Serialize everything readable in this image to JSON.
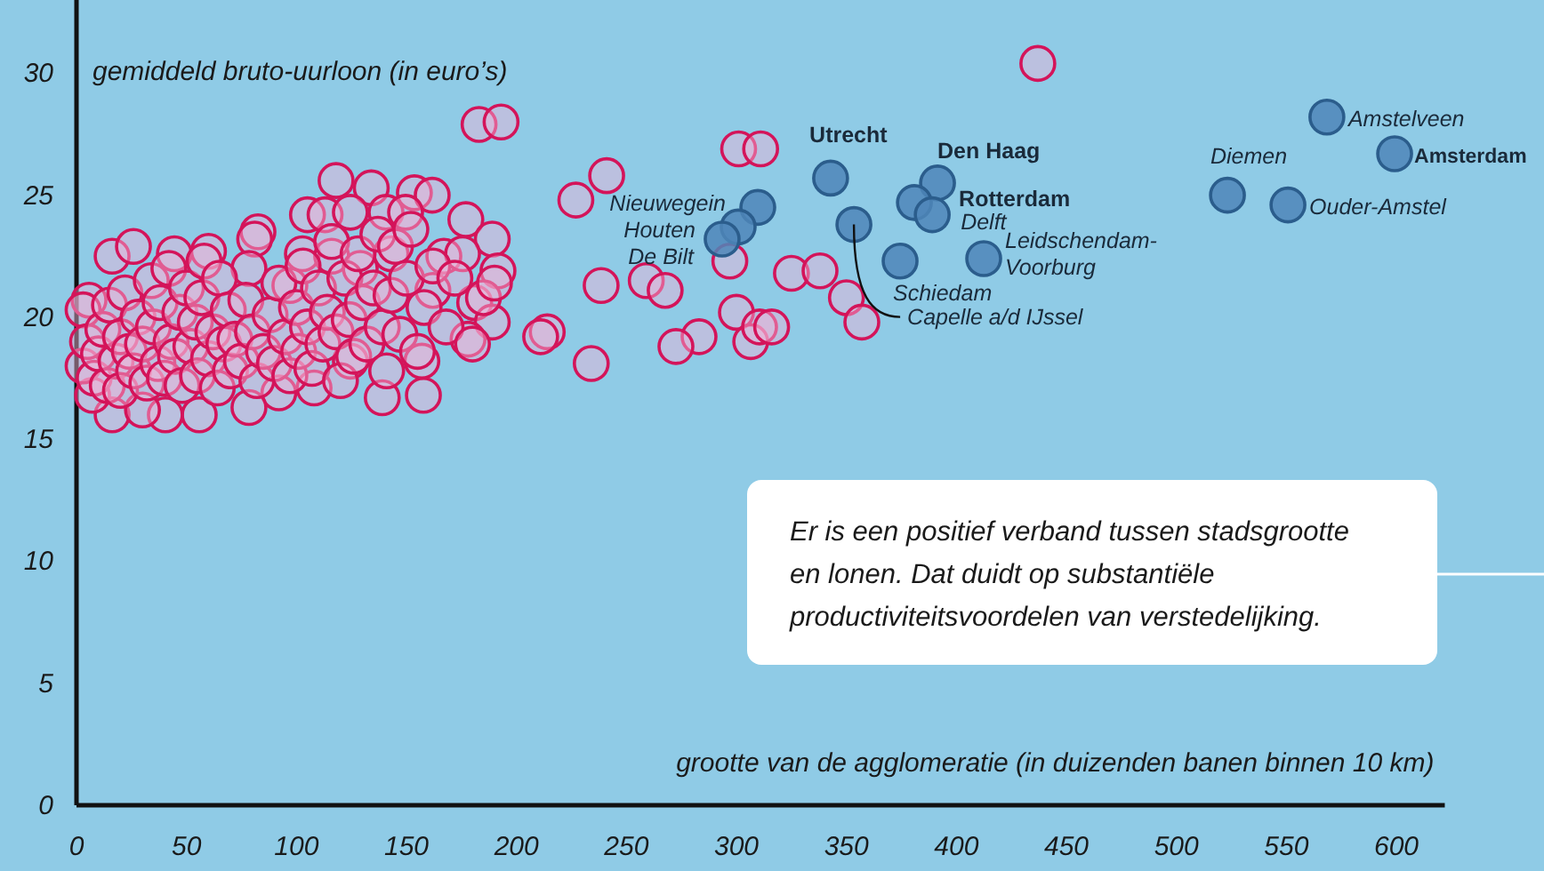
{
  "chart_data": {
    "type": "scatter",
    "xlabel": "grootte van de agglomeratie (in duizenden banen binnen 10 km)",
    "ylabel": "gemiddeld bruto-uurloon (in euro’s)",
    "xlim": [
      0,
      622
    ],
    "ylim": [
      0,
      33
    ],
    "xticks": [
      0,
      50,
      100,
      150,
      200,
      250,
      300,
      350,
      400,
      450,
      500,
      550,
      600
    ],
    "yticks": [
      0,
      5,
      10,
      15,
      20,
      25,
      30
    ],
    "grid": false,
    "marker": "circle",
    "series": [
      {
        "color": "#d4145a",
        "x": [
          437,
          183,
          193,
          301,
          311,
          241,
          227,
          238.5,
          259,
          267.6,
          297,
          325,
          338,
          350,
          357,
          300,
          306.5,
          310.5,
          316,
          283,
          272.5,
          234,
          214,
          211,
          118,
          134,
          153.6,
          161.7,
          105,
          113,
          124.5,
          140.7,
          149.6,
          177,
          189,
          82.5,
          16.2,
          25.9,
          44.5,
          60,
          81,
          102.7,
          116,
          143,
          167,
          175.5,
          191.6,
          5.7,
          78.4,
          97,
          129,
          162,
          181,
          189,
          178,
          157,
          157.7,
          139,
          124.5,
          108,
          92,
          78.4,
          55.8,
          40.4,
          16.2,
          30,
          7.3,
          3,
          3,
          5,
          8,
          10,
          12,
          14,
          15,
          18,
          20,
          20,
          22,
          24,
          26,
          28,
          30,
          32,
          34,
          35,
          37,
          38,
          40,
          42,
          43,
          45,
          47,
          48,
          50,
          52,
          54,
          55,
          57,
          58,
          60,
          62,
          64,
          65,
          67,
          69,
          70,
          72,
          75,
          77,
          80,
          82,
          85,
          88,
          90,
          92,
          95,
          97,
          100,
          101,
          103,
          105,
          107,
          110,
          112,
          114,
          116,
          118,
          120,
          122,
          124,
          126,
          128,
          130,
          132,
          135,
          137,
          139,
          141,
          143,
          145,
          147,
          150,
          152,
          155,
          158,
          162,
          168,
          172,
          185,
          190,
          180
        ],
        "values": [
          30.4,
          27.9,
          28.0,
          26.9,
          26.9,
          25.8,
          24.8,
          21.3,
          21.5,
          21.1,
          22.3,
          21.8,
          21.9,
          20.8,
          19.8,
          20.2,
          19.0,
          19.6,
          19.6,
          19.2,
          18.8,
          18.1,
          19.4,
          19.2,
          25.6,
          25.3,
          25.1,
          25.0,
          24.2,
          24.2,
          24.3,
          24.3,
          24.3,
          24.0,
          23.2,
          23.5,
          22.5,
          22.9,
          22.6,
          22.7,
          23.2,
          22.6,
          22.5,
          22.6,
          22.5,
          22.6,
          21.9,
          20.7,
          22.0,
          21.3,
          22.0,
          21.1,
          20.6,
          19.8,
          19.1,
          18.2,
          16.8,
          16.7,
          18.2,
          17.1,
          16.9,
          16.3,
          16.0,
          16.0,
          16.0,
          16.2,
          16.8,
          20.3,
          18,
          19,
          17.5,
          18.5,
          19.5,
          17.2,
          20.5,
          18.2,
          19.2,
          17,
          21,
          18.6,
          17.8,
          20,
          18.9,
          17.3,
          21.5,
          19.6,
          18.1,
          20.6,
          17.5,
          22,
          19,
          18.4,
          20.2,
          17.2,
          21.2,
          18.8,
          19.8,
          17.6,
          20.8,
          22.3,
          18.3,
          19.4,
          17.1,
          21.6,
          18.9,
          20.3,
          17.8,
          19.1,
          18.2,
          20.7,
          19.4,
          17.4,
          18.6,
          20.1,
          18.1,
          21.4,
          19.2,
          17.6,
          20.4,
          18.6,
          22.1,
          19.6,
          17.9,
          21.2,
          18.9,
          20.2,
          23.1,
          19.4,
          17.4,
          21.6,
          19.9,
          18.4,
          22.6,
          20.6,
          18.9,
          21.2,
          23.4,
          19.6,
          17.8,
          20.9,
          22.9,
          19.3,
          21.6,
          23.6,
          18.6,
          20.4,
          22.1,
          19.6,
          21.6,
          20.8,
          21.4,
          18.9
        ]
      },
      {
        "color": "#4f86b8",
        "x": [
          309.7,
          300.8,
          293.5,
          342.8,
          353.4,
          391.4,
          380.9,
          389,
          374.4,
          412.4,
          523.2,
          550.7,
          568.4,
          599.2
        ],
        "values": [
          24.5,
          23.7,
          23.2,
          25.7,
          23.8,
          25.5,
          24.7,
          24.2,
          22.3,
          22.4,
          25.0,
          24.6,
          28.2,
          26.7
        ]
      }
    ],
    "annotations": [
      {
        "text": "Nieuwegein",
        "x": 309.7,
        "y": 24.5
      },
      {
        "text": "Houten",
        "x": 300.8,
        "y": 23.7
      },
      {
        "text": "De Bilt",
        "x": 293.5,
        "y": 23.2
      },
      {
        "text": "Utrecht",
        "x": 342.8,
        "y": 25.7
      },
      {
        "text": "Capelle a/d IJssel",
        "x": 353.4,
        "y": 23.8
      },
      {
        "text": "Den Haag",
        "x": 391.4,
        "y": 25.5
      },
      {
        "text": "Rotterdam",
        "x": 380.9,
        "y": 24.7
      },
      {
        "text": "Delft",
        "x": 389,
        "y": 24.2
      },
      {
        "text": "Schiedam",
        "x": 374.4,
        "y": 22.3
      },
      {
        "text": "Leidschendam-\nVoorburg",
        "x": 412.4,
        "y": 22.4
      },
      {
        "text": "Diemen",
        "x": 523.2,
        "y": 25.0
      },
      {
        "text": "Ouder-Amstel",
        "x": 550.7,
        "y": 24.6
      },
      {
        "text": "Amstelveen",
        "x": 568.4,
        "y": 28.2
      },
      {
        "text": "Amsterdam",
        "x": 599.2,
        "y": 26.7
      },
      "Er is een positief verband tussen stadsgrootte\nen lonen. Dat duidt op substantiële\nproductiviteitsvoordelen van verstedelijking."
    ]
  }
}
